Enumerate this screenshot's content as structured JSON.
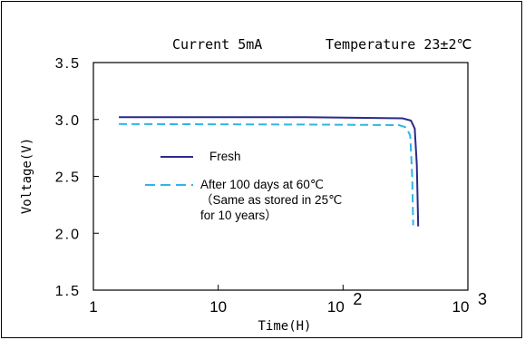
{
  "chart_data": {
    "type": "line",
    "title": "Current 5mA",
    "subtitle": "Temperature 23±2℃",
    "xlabel": "Time(H)",
    "ylabel": "Voltage(V)",
    "x_scale": "log",
    "xlim": [
      1,
      1000
    ],
    "ylim": [
      1.5,
      3.5
    ],
    "grid": false,
    "legend_position": "center-left",
    "x_ticks": [
      {
        "value": 1,
        "base": "1",
        "exp": ""
      },
      {
        "value": 10,
        "base": "10",
        "exp": ""
      },
      {
        "value": 100,
        "base": "10",
        "exp": "2"
      },
      {
        "value": 1000,
        "base": "10",
        "exp": "3"
      }
    ],
    "y_ticks": [
      {
        "value": 1.5,
        "label": "1.5"
      },
      {
        "value": 2.0,
        "label": "2.0"
      },
      {
        "value": 2.5,
        "label": "2.5"
      },
      {
        "value": 3.0,
        "label": "3.0"
      },
      {
        "value": 3.5,
        "label": "3.5"
      }
    ],
    "series": [
      {
        "name": "Fresh",
        "color": "#2a2a8c",
        "dash": "solid",
        "points": [
          [
            1.6,
            3.02
          ],
          [
            50,
            3.02
          ],
          [
            300,
            3.01
          ],
          [
            350,
            2.99
          ],
          [
            375,
            2.92
          ],
          [
            390,
            2.6
          ],
          [
            400,
            2.06
          ]
        ]
      },
      {
        "name": "After 100 days at 60℃",
        "name_lines": [
          "After 100 days at 60℃",
          "（Same as stored in 25℃",
          "for 10 years）"
        ],
        "color": "#2eb5e8",
        "dash": "dashed",
        "points": [
          [
            1.6,
            2.96
          ],
          [
            50,
            2.955
          ],
          [
            280,
            2.95
          ],
          [
            320,
            2.93
          ],
          [
            345,
            2.86
          ],
          [
            358,
            2.5
          ],
          [
            365,
            2.07
          ]
        ]
      }
    ]
  }
}
